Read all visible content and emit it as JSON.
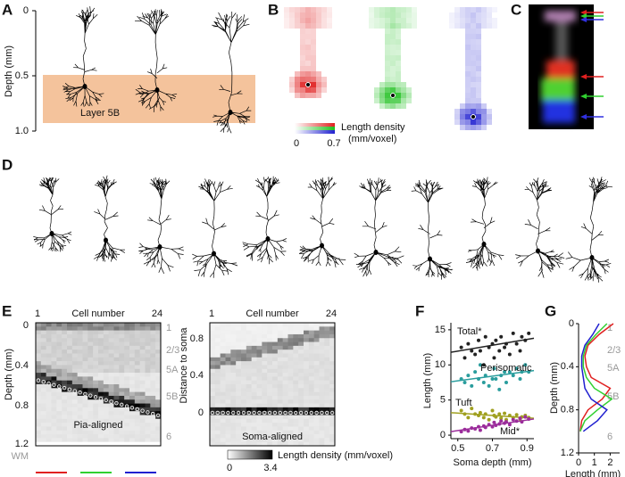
{
  "panels": {
    "A": {
      "label": "A",
      "y_axis_label": "Depth (mm)",
      "ticks": [
        "0",
        "0.5",
        "1.0"
      ],
      "layer": "Layer 5B"
    },
    "B": {
      "label": "B",
      "colorbar_title": "Length density",
      "colorbar_unit": "(mm/voxel)",
      "colorbar_ticks": [
        "0",
        "0.7"
      ]
    },
    "C": {
      "label": "C"
    },
    "D": {
      "label": "D"
    },
    "E": {
      "label": "E",
      "left": {
        "x_axis_label": "Cell number",
        "x_ticks": [
          "1",
          "24"
        ],
        "y_axis_label": "Depth (mm)",
        "y_ticks": [
          "0",
          "0.4",
          "0.8",
          "1.2"
        ],
        "wm": "WM",
        "layers": [
          "1",
          "2/3",
          "5A",
          "5B",
          "6"
        ],
        "caption": "Pia-aligned"
      },
      "right": {
        "x_axis_label": "Cell number",
        "x_ticks": [
          "1",
          "24"
        ],
        "y_axis_label": "Distance to soma",
        "y_ticks": [
          "0.8",
          "0.4",
          "0"
        ],
        "caption": "Soma-aligned"
      },
      "colorbar_title": "Length density (mm/voxel)",
      "colorbar_ticks": [
        "0",
        "3.4"
      ]
    },
    "F": {
      "label": "F"
    },
    "G": {
      "label": "G"
    }
  },
  "chart_data": [
    {
      "type": "scatter",
      "x_axis_label": "Soma depth (mm)",
      "y_axis_label": "Length (mm)",
      "x": [
        0.52,
        0.54,
        0.56,
        0.58,
        0.6,
        0.62,
        0.63,
        0.65,
        0.66,
        0.68,
        0.7,
        0.71,
        0.72,
        0.74,
        0.75,
        0.77,
        0.78,
        0.8,
        0.82,
        0.84,
        0.86,
        0.87,
        0.89,
        0.91
      ],
      "series": [
        {
          "name": "Total*",
          "color": "#222222",
          "values": [
            12.5,
            11,
            13,
            12,
            11.5,
            13.5,
            12,
            10,
            14,
            12.5,
            13,
            11,
            13.5,
            12,
            14,
            12.5,
            13,
            11.5,
            14.5,
            13,
            12,
            14,
            13.5,
            14.5
          ],
          "fit": [
            11.8,
            13.8
          ]
        },
        {
          "name": "Perisomatic",
          "color": "#2a9d9d",
          "values": [
            8,
            7.5,
            8.5,
            7,
            9,
            8,
            10,
            7.5,
            8.5,
            7,
            8,
            9.5,
            8,
            6.5,
            8.5,
            9,
            7.5,
            9,
            8.5,
            9.5,
            8,
            9,
            10,
            9
          ],
          "fit": [
            7.6,
            9.2
          ]
        },
        {
          "name": "Tuft",
          "color": "#a0a020",
          "values": [
            3.5,
            3,
            2.5,
            3.8,
            3,
            2.8,
            3.2,
            2.5,
            3,
            2.2,
            3.5,
            2.8,
            2.6,
            3,
            2.4,
            3.1,
            2.2,
            2.8,
            2.5,
            2.9,
            2.3,
            2.6,
            2.8,
            2.5
          ],
          "fit": [
            3.2,
            2.4
          ]
        },
        {
          "name": "Mid*",
          "color": "#9b2d9b",
          "values": [
            0.5,
            0.8,
            0.6,
            1,
            0.9,
            1.2,
            0.7,
            1.3,
            1.1,
            1.5,
            1.2,
            1.8,
            1.4,
            1.6,
            2,
            1.7,
            1.9,
            1.5,
            2.2,
            2,
            2.4,
            1.9,
            2.6,
            2.3
          ],
          "fit": [
            0.5,
            2.3
          ]
        }
      ],
      "xlim": [
        0.46,
        0.94
      ],
      "xticks": [
        0.5,
        0.7,
        0.9
      ],
      "ylim": [
        -0.5,
        16
      ],
      "yticks": [
        0,
        5,
        10,
        15
      ]
    },
    {
      "type": "profile",
      "x_axis_label": "Length (mm)",
      "y_axis_label": "Depth (mm)",
      "y": [
        0,
        0.1,
        0.2,
        0.3,
        0.4,
        0.5,
        0.6,
        0.7,
        0.8,
        0.9,
        1.0
      ],
      "series": [
        {
          "color": "#e02020",
          "values": [
            2.2,
            1.3,
            0.6,
            0.4,
            0.5,
            0.8,
            2.0,
            1.5,
            0.6,
            0.2,
            0.1
          ]
        },
        {
          "color": "#30d030",
          "values": [
            1.8,
            1.1,
            0.5,
            0.3,
            0.3,
            0.5,
            1.0,
            2.1,
            1.2,
            0.4,
            0.1
          ]
        },
        {
          "color": "#2020d0",
          "values": [
            1.3,
            0.9,
            0.4,
            0.2,
            0.2,
            0.3,
            0.4,
            0.8,
            1.8,
            1.2,
            0.3
          ]
        }
      ],
      "xlim": [
        0,
        2.6
      ],
      "xticks": [
        0,
        1,
        2
      ],
      "ylim": [
        0,
        1.2
      ],
      "yticks": [
        0,
        0.4,
        0.8,
        1.2
      ],
      "y_inverted": true,
      "annotations": [
        "1",
        "2/3",
        "5A",
        "5B",
        "6"
      ]
    }
  ]
}
